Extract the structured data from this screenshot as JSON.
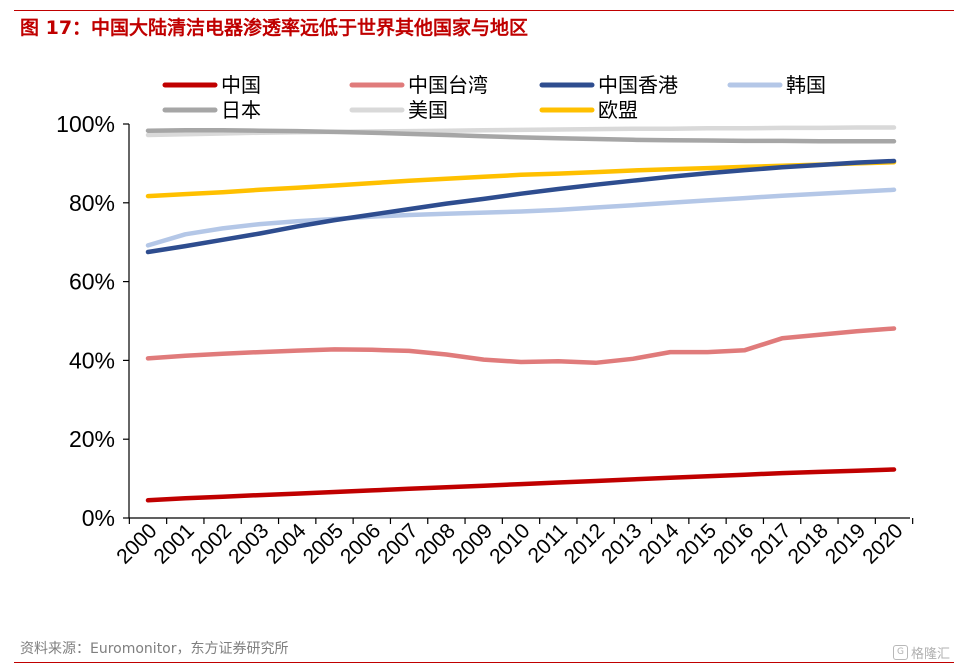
{
  "figure_title": "图 17：中国大陆清洁电器渗透率远低于世界其他国家与地区",
  "source": "资料来源：Euromonitor，东方证券研究所",
  "watermark": {
    "text": "格隆汇",
    "icon": "g-logo-icon"
  },
  "colors": {
    "accent": "#c00000",
    "axis": "#000000",
    "source_text": "#7f7f7f"
  },
  "chart_data": {
    "type": "line",
    "title": "",
    "xlabel": "",
    "ylabel": "",
    "x": [
      "2000",
      "2001",
      "2002",
      "2003",
      "2004",
      "2005",
      "2006",
      "2007",
      "2008",
      "2009",
      "2010",
      "2011",
      "2012",
      "2013",
      "2014",
      "2015",
      "2016",
      "2017",
      "2018",
      "2019",
      "2020"
    ],
    "ylim": [
      0,
      100
    ],
    "yticks": [
      0,
      20,
      40,
      60,
      80,
      100
    ],
    "ytick_labels": [
      "0%",
      "20%",
      "40%",
      "60%",
      "80%",
      "100%"
    ],
    "grid": false,
    "legend_position": "top",
    "series": [
      {
        "name": "中国",
        "color": "#c00000",
        "values": [
          4.5,
          5.0,
          5.4,
          5.8,
          6.2,
          6.6,
          7.0,
          7.4,
          7.8,
          8.2,
          8.6,
          9.0,
          9.4,
          9.8,
          10.2,
          10.6,
          11.0,
          11.4,
          11.7,
          12.0,
          12.3
        ]
      },
      {
        "name": "中国台湾",
        "color": "#e07b7b",
        "values": [
          40.5,
          41.2,
          41.7,
          42.1,
          42.5,
          42.8,
          42.7,
          42.4,
          41.5,
          40.2,
          39.6,
          39.8,
          39.4,
          40.4,
          42.1,
          42.1,
          42.6,
          45.6,
          46.5,
          47.4,
          48.1
        ]
      },
      {
        "name": "中国香港",
        "color": "#2e4d8f",
        "values": [
          67.5,
          69.0,
          70.6,
          72.2,
          74.0,
          75.6,
          77.0,
          78.4,
          79.8,
          81.0,
          82.3,
          83.5,
          84.6,
          85.6,
          86.6,
          87.5,
          88.3,
          89.0,
          89.6,
          90.2,
          90.6
        ]
      },
      {
        "name": "韩国",
        "color": "#b4c7e7",
        "values": [
          69.2,
          72.0,
          73.5,
          74.6,
          75.3,
          75.9,
          76.5,
          76.9,
          77.2,
          77.5,
          77.8,
          78.2,
          78.8,
          79.4,
          80.0,
          80.6,
          81.2,
          81.8,
          82.3,
          82.8,
          83.3
        ]
      },
      {
        "name": "日本",
        "color": "#a6a6a6",
        "values": [
          98.3,
          98.4,
          98.4,
          98.3,
          98.2,
          98.0,
          97.8,
          97.5,
          97.2,
          96.9,
          96.6,
          96.4,
          96.2,
          96.0,
          95.9,
          95.8,
          95.7,
          95.7,
          95.6,
          95.6,
          95.6
        ]
      },
      {
        "name": "美国",
        "color": "#d9d9d9",
        "values": [
          97.2,
          97.4,
          97.6,
          97.8,
          97.9,
          98.0,
          98.1,
          98.2,
          98.3,
          98.4,
          98.5,
          98.6,
          98.7,
          98.8,
          98.8,
          98.9,
          98.9,
          99.0,
          99.0,
          99.1,
          99.1
        ]
      },
      {
        "name": "欧盟",
        "color": "#ffc000",
        "values": [
          81.7,
          82.2,
          82.7,
          83.3,
          83.8,
          84.4,
          85.0,
          85.6,
          86.1,
          86.6,
          87.1,
          87.4,
          87.8,
          88.2,
          88.5,
          88.8,
          89.1,
          89.4,
          89.7,
          90.0,
          90.3
        ]
      }
    ]
  }
}
